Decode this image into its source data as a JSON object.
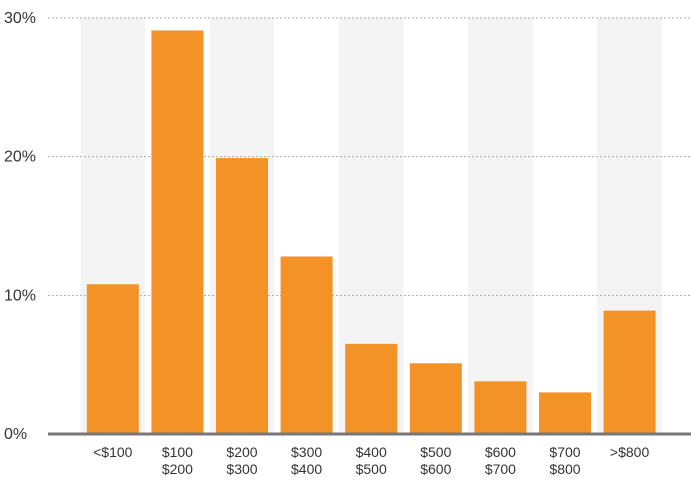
{
  "chart_data": {
    "type": "bar",
    "categories": [
      [
        "<$100"
      ],
      [
        "$100",
        "$200"
      ],
      [
        "$200",
        "$300"
      ],
      [
        "$300",
        "$400"
      ],
      [
        "$400",
        "$500"
      ],
      [
        "$500",
        "$600"
      ],
      [
        "$600",
        "$700"
      ],
      [
        "$700",
        "$800"
      ],
      [
        ">$800"
      ]
    ],
    "values": [
      10.8,
      29.1,
      19.9,
      12.8,
      6.5,
      5.1,
      3.8,
      3.0,
      8.9
    ],
    "ylim": [
      0,
      30
    ],
    "yticks": [
      0,
      10,
      20,
      30
    ],
    "ytick_labels": [
      "0%",
      "10%",
      "20%",
      "30%"
    ],
    "grid": true,
    "alternating_bands": true,
    "title": "",
    "xlabel": "",
    "ylabel": "",
    "colors": {
      "bar": "#F29227",
      "band": "#F4F4F4",
      "grid": "#AAAAAA",
      "baseline": "#777777",
      "text": "#333333"
    }
  }
}
